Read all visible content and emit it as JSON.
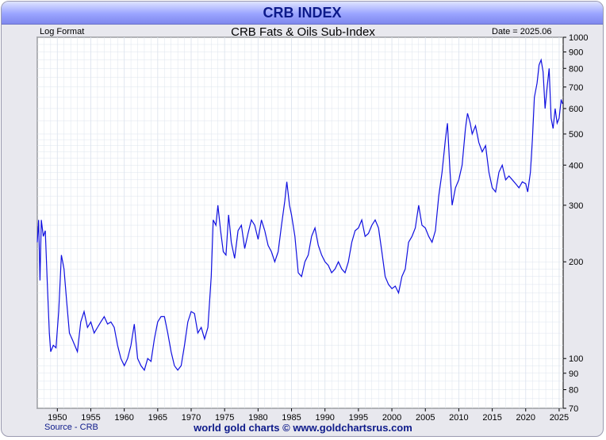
{
  "header": {
    "title": "CRB INDEX"
  },
  "plot": {
    "left_note": "Log Format",
    "date_note": "Date = 2025.06"
  },
  "footer": {
    "source": "Source - CRB",
    "credit": "world gold charts © www.goldchartsrus.com"
  },
  "colors": {
    "line": "#1010e0",
    "title_text": "#0d1a8a",
    "grid": "#dde4ee"
  },
  "chart_data": {
    "type": "line",
    "title": "CRB Fats & Oils Sub-Index",
    "xlabel": "",
    "ylabel": "",
    "y_scale": "log",
    "xlim": [
      1947,
      2025.6
    ],
    "ylim": [
      70,
      1000
    ],
    "x_ticks": [
      1950,
      1955,
      1960,
      1965,
      1970,
      1975,
      1980,
      1985,
      1990,
      1995,
      2000,
      2005,
      2010,
      2015,
      2020,
      2025
    ],
    "y_ticks": [
      70,
      80,
      90,
      100,
      200,
      300,
      400,
      500,
      600,
      700,
      800,
      900,
      1000
    ],
    "grid": true,
    "series": [
      {
        "values": [
          [
            1947.0,
            230
          ],
          [
            1947.2,
            270
          ],
          [
            1947.4,
            175
          ],
          [
            1947.6,
            270
          ],
          [
            1947.9,
            240
          ],
          [
            1948.2,
            250
          ],
          [
            1948.5,
            170
          ],
          [
            1948.8,
            120
          ],
          [
            1949.0,
            105
          ],
          [
            1949.4,
            110
          ],
          [
            1949.8,
            108
          ],
          [
            1950.2,
            140
          ],
          [
            1950.6,
            210
          ],
          [
            1951.0,
            190
          ],
          [
            1951.4,
            150
          ],
          [
            1951.8,
            120
          ],
          [
            1952.2,
            115
          ],
          [
            1952.6,
            110
          ],
          [
            1953.0,
            105
          ],
          [
            1953.5,
            130
          ],
          [
            1954.0,
            140
          ],
          [
            1954.5,
            125
          ],
          [
            1955.0,
            130
          ],
          [
            1955.5,
            120
          ],
          [
            1956.0,
            125
          ],
          [
            1956.5,
            130
          ],
          [
            1957.0,
            135
          ],
          [
            1957.5,
            128
          ],
          [
            1958.0,
            130
          ],
          [
            1958.5,
            125
          ],
          [
            1959.0,
            110
          ],
          [
            1959.5,
            100
          ],
          [
            1960.0,
            95
          ],
          [
            1960.5,
            100
          ],
          [
            1961.0,
            110
          ],
          [
            1961.5,
            128
          ],
          [
            1962.0,
            100
          ],
          [
            1962.5,
            95
          ],
          [
            1963.0,
            92
          ],
          [
            1963.5,
            100
          ],
          [
            1964.0,
            98
          ],
          [
            1964.5,
            115
          ],
          [
            1965.0,
            130
          ],
          [
            1965.5,
            135
          ],
          [
            1966.0,
            135
          ],
          [
            1966.5,
            120
          ],
          [
            1967.0,
            105
          ],
          [
            1967.5,
            95
          ],
          [
            1968.0,
            92
          ],
          [
            1968.5,
            95
          ],
          [
            1969.0,
            110
          ],
          [
            1969.5,
            130
          ],
          [
            1970.0,
            140
          ],
          [
            1970.5,
            138
          ],
          [
            1971.0,
            120
          ],
          [
            1971.5,
            125
          ],
          [
            1972.0,
            115
          ],
          [
            1972.5,
            125
          ],
          [
            1973.0,
            180
          ],
          [
            1973.3,
            270
          ],
          [
            1973.7,
            260
          ],
          [
            1974.0,
            300
          ],
          [
            1974.4,
            250
          ],
          [
            1974.8,
            215
          ],
          [
            1975.2,
            210
          ],
          [
            1975.6,
            280
          ],
          [
            1976.0,
            230
          ],
          [
            1976.5,
            205
          ],
          [
            1977.0,
            250
          ],
          [
            1977.5,
            260
          ],
          [
            1978.0,
            220
          ],
          [
            1978.5,
            245
          ],
          [
            1979.0,
            270
          ],
          [
            1979.5,
            260
          ],
          [
            1980.0,
            235
          ],
          [
            1980.5,
            270
          ],
          [
            1981.0,
            250
          ],
          [
            1981.5,
            225
          ],
          [
            1982.0,
            215
          ],
          [
            1982.5,
            200
          ],
          [
            1983.0,
            215
          ],
          [
            1983.5,
            260
          ],
          [
            1984.0,
            310
          ],
          [
            1984.3,
            355
          ],
          [
            1984.7,
            300
          ],
          [
            1985.0,
            280
          ],
          [
            1985.5,
            240
          ],
          [
            1986.0,
            185
          ],
          [
            1986.5,
            180
          ],
          [
            1987.0,
            200
          ],
          [
            1987.5,
            210
          ],
          [
            1988.0,
            240
          ],
          [
            1988.5,
            255
          ],
          [
            1989.0,
            225
          ],
          [
            1989.5,
            210
          ],
          [
            1990.0,
            200
          ],
          [
            1990.5,
            195
          ],
          [
            1991.0,
            185
          ],
          [
            1991.5,
            190
          ],
          [
            1992.0,
            200
          ],
          [
            1992.5,
            190
          ],
          [
            1993.0,
            185
          ],
          [
            1993.5,
            200
          ],
          [
            1994.0,
            230
          ],
          [
            1994.5,
            250
          ],
          [
            1995.0,
            255
          ],
          [
            1995.5,
            270
          ],
          [
            1996.0,
            240
          ],
          [
            1996.5,
            245
          ],
          [
            1997.0,
            260
          ],
          [
            1997.5,
            270
          ],
          [
            1998.0,
            255
          ],
          [
            1998.5,
            215
          ],
          [
            1999.0,
            180
          ],
          [
            1999.5,
            170
          ],
          [
            2000.0,
            165
          ],
          [
            2000.5,
            168
          ],
          [
            2001.0,
            160
          ],
          [
            2001.5,
            180
          ],
          [
            2002.0,
            190
          ],
          [
            2002.5,
            230
          ],
          [
            2003.0,
            240
          ],
          [
            2003.5,
            255
          ],
          [
            2004.0,
            300
          ],
          [
            2004.5,
            260
          ],
          [
            2005.0,
            255
          ],
          [
            2005.5,
            240
          ],
          [
            2006.0,
            230
          ],
          [
            2006.5,
            250
          ],
          [
            2007.0,
            320
          ],
          [
            2007.5,
            380
          ],
          [
            2008.0,
            480
          ],
          [
            2008.3,
            540
          ],
          [
            2008.7,
            380
          ],
          [
            2009.0,
            300
          ],
          [
            2009.5,
            340
          ],
          [
            2010.0,
            360
          ],
          [
            2010.5,
            400
          ],
          [
            2011.0,
            520
          ],
          [
            2011.3,
            580
          ],
          [
            2011.7,
            540
          ],
          [
            2012.0,
            500
          ],
          [
            2012.5,
            530
          ],
          [
            2013.0,
            470
          ],
          [
            2013.5,
            440
          ],
          [
            2014.0,
            460
          ],
          [
            2014.5,
            380
          ],
          [
            2015.0,
            340
          ],
          [
            2015.5,
            330
          ],
          [
            2016.0,
            380
          ],
          [
            2016.5,
            400
          ],
          [
            2017.0,
            360
          ],
          [
            2017.5,
            370
          ],
          [
            2018.0,
            360
          ],
          [
            2018.5,
            350
          ],
          [
            2019.0,
            340
          ],
          [
            2019.5,
            355
          ],
          [
            2020.0,
            350
          ],
          [
            2020.3,
            330
          ],
          [
            2020.7,
            380
          ],
          [
            2021.0,
            480
          ],
          [
            2021.3,
            650
          ],
          [
            2021.7,
            720
          ],
          [
            2022.0,
            820
          ],
          [
            2022.3,
            850
          ],
          [
            2022.6,
            780
          ],
          [
            2022.9,
            600
          ],
          [
            2023.2,
            700
          ],
          [
            2023.5,
            800
          ],
          [
            2023.8,
            560
          ],
          [
            2024.1,
            520
          ],
          [
            2024.4,
            600
          ],
          [
            2024.7,
            540
          ],
          [
            2025.0,
            560
          ],
          [
            2025.3,
            640
          ],
          [
            2025.5,
            620
          ]
        ]
      }
    ]
  }
}
